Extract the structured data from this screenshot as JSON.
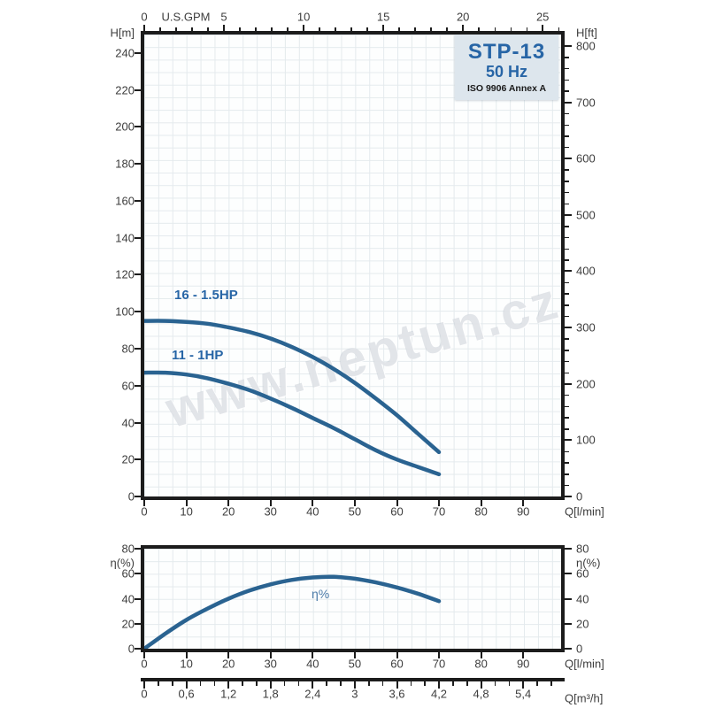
{
  "figure": {
    "watermark": "www.neptun.cz",
    "info_box": {
      "model": "STP-13",
      "frequency": "50 Hz",
      "standard": "ISO 9906 Annex A"
    },
    "colors": {
      "curve": "#2a6391",
      "label_blue": "#2765a6",
      "axis": "#1c1c1c",
      "grid": "#e4eaed",
      "info_box_bg": "#dde6ed",
      "watermark_gray": "#c6ccd2"
    }
  },
  "main_chart": {
    "x_top": {
      "title": "U.S.GPM",
      "ticks": [
        0,
        5,
        10,
        15,
        20,
        25
      ],
      "minor_step": 1
    },
    "x_bottom": {
      "title": "Q[l/min]",
      "ticks": [
        0,
        10,
        20,
        30,
        40,
        50,
        60,
        70,
        80,
        90
      ]
    },
    "y_left": {
      "title": "H[m]",
      "ticks": [
        0,
        20,
        40,
        60,
        80,
        100,
        120,
        140,
        160,
        180,
        200,
        220,
        240
      ]
    },
    "y_right": {
      "title": "H[ft]",
      "ticks": [
        0,
        100,
        200,
        300,
        400,
        500,
        600,
        700,
        800
      ],
      "minor_step": 20
    },
    "curve_labels": [
      "16 - 1.5HP",
      "11 - 1HP"
    ]
  },
  "eff_chart": {
    "y_left": {
      "title": "η(%)",
      "ticks": [
        0,
        20,
        40,
        60,
        80
      ]
    },
    "y_right": {
      "title": "η(%)",
      "ticks": [
        0,
        20,
        40,
        60,
        80
      ]
    },
    "x_bottom": {
      "title": "Q[l/min]",
      "ticks": [
        0,
        10,
        20,
        30,
        40,
        50,
        60,
        70,
        80,
        90
      ]
    },
    "curve_label": "η%"
  },
  "m3h_axis": {
    "title": "Q[m³/h]",
    "tick_labels": [
      "0",
      "0,6",
      "1,2",
      "1,8",
      "2,4",
      "3",
      "3,6",
      "4,2",
      "4,8",
      "5,4"
    ],
    "tick_values": [
      0,
      0.6,
      1.2,
      1.8,
      2.4,
      3,
      3.6,
      4.2,
      4.8,
      5.4
    ],
    "minor_step": 0.2,
    "minor_max": 6.0
  },
  "chart_data": [
    {
      "type": "line",
      "title": "STP-13 50 Hz pump head vs flow (ISO 9906 Annex A)",
      "xlabel": "Q[l/min]",
      "x2label": "U.S.GPM",
      "ylabel": "H[m]",
      "y2label": "H[ft]",
      "xlim": [
        0,
        99
      ],
      "ylim": [
        0,
        250
      ],
      "grid": true,
      "legend_position": "inline-labels",
      "series": [
        {
          "name": "16 - 1.5HP",
          "x": [
            0,
            5,
            10,
            15,
            20,
            25,
            30,
            35,
            40,
            45,
            50,
            55,
            60,
            65,
            70
          ],
          "y": [
            95,
            95,
            94.5,
            93.5,
            91.5,
            89,
            85.5,
            81,
            75.5,
            69,
            61.5,
            53,
            44,
            34,
            24
          ]
        },
        {
          "name": "11 - 1HP",
          "x": [
            0,
            5,
            10,
            15,
            20,
            25,
            30,
            35,
            40,
            45,
            50,
            55,
            60,
            65,
            70
          ],
          "y": [
            67,
            67,
            66,
            64,
            61,
            57.5,
            53,
            48,
            42.5,
            37,
            31,
            25,
            20,
            16,
            12
          ]
        }
      ]
    },
    {
      "type": "line",
      "title": "Efficiency vs flow",
      "xlabel": "Q[l/min]",
      "x2label": "Q[m³/h]",
      "ylabel": "η(%)",
      "y2label": "η(%)",
      "xlim": [
        0,
        99
      ],
      "ylim": [
        0,
        80
      ],
      "grid": true,
      "series": [
        {
          "name": "η%",
          "x": [
            0,
            5,
            10,
            15,
            20,
            25,
            30,
            35,
            40,
            45,
            50,
            55,
            60,
            65,
            70
          ],
          "y": [
            0,
            12,
            23,
            32,
            40,
            46.5,
            51.5,
            55,
            57,
            57.5,
            56,
            53,
            49,
            44,
            38
          ]
        }
      ]
    }
  ]
}
